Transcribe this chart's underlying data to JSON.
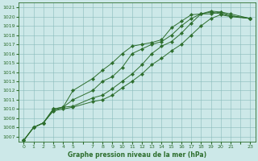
{
  "xlabel": "Graphe pression niveau de la mer (hPa)",
  "bg_color": "#cce8e8",
  "line_color": "#2d6e2d",
  "grid_color": "#88bbbb",
  "xlim": [
    -0.5,
    23.5
  ],
  "ylim": [
    1006.5,
    1021.5
  ],
  "yticks": [
    1007,
    1008,
    1009,
    1010,
    1011,
    1012,
    1013,
    1014,
    1015,
    1016,
    1017,
    1018,
    1019,
    1020,
    1021
  ],
  "xtick_labels": [
    "0",
    "1",
    "2",
    "3",
    "4",
    "5",
    "",
    "7",
    "8",
    "9",
    "10",
    "11",
    "12",
    "13",
    "14",
    "15",
    "16",
    "17",
    "18",
    "19",
    "20",
    "21",
    "",
    "23"
  ],
  "xtick_positions": [
    0,
    1,
    2,
    3,
    4,
    5,
    6,
    7,
    8,
    9,
    10,
    11,
    12,
    13,
    14,
    15,
    16,
    17,
    18,
    19,
    20,
    21,
    22,
    23
  ],
  "series": [
    {
      "x": [
        0,
        1,
        2,
        3,
        4,
        5,
        7,
        8,
        9,
        10,
        11,
        12,
        13,
        14,
        15,
        16,
        17,
        18,
        19,
        20,
        21,
        23
      ],
      "y": [
        1006.6,
        1008.0,
        1008.5,
        1010.0,
        1010.2,
        1012.0,
        1013.3,
        1014.2,
        1015.0,
        1016.0,
        1016.8,
        1017.0,
        1017.2,
        1017.5,
        1018.8,
        1019.5,
        1020.2,
        1020.3,
        1020.5,
        1020.3,
        1020.1,
        1019.8
      ]
    },
    {
      "x": [
        0,
        1,
        2,
        3,
        4,
        5,
        7,
        8,
        9,
        10,
        11,
        12,
        13,
        14,
        15,
        16,
        17,
        18,
        19,
        20,
        21,
        23
      ],
      "y": [
        1006.6,
        1008.0,
        1008.5,
        1010.0,
        1010.2,
        1011.0,
        1012.0,
        1013.0,
        1013.5,
        1014.5,
        1016.0,
        1016.5,
        1017.0,
        1017.3,
        1018.0,
        1019.0,
        1019.8,
        1020.3,
        1020.6,
        1020.5,
        1020.3,
        1019.8
      ]
    },
    {
      "x": [
        0,
        1,
        2,
        3,
        4,
        5,
        7,
        8,
        9,
        10,
        11,
        12,
        13,
        14,
        15,
        16,
        17,
        18,
        19,
        20,
        21,
        23
      ],
      "y": [
        1006.6,
        1008.0,
        1008.5,
        1009.8,
        1010.2,
        1010.3,
        1011.2,
        1011.5,
        1012.2,
        1013.0,
        1013.8,
        1014.8,
        1016.0,
        1016.8,
        1017.3,
        1018.2,
        1019.3,
        1020.3,
        1020.3,
        1020.5,
        1020.1,
        1019.8
      ]
    },
    {
      "x": [
        0,
        1,
        2,
        3,
        4,
        5,
        7,
        8,
        9,
        10,
        11,
        12,
        13,
        14,
        15,
        16,
        17,
        18,
        19,
        20,
        21,
        23
      ],
      "y": [
        1006.6,
        1008.0,
        1008.5,
        1009.8,
        1010.0,
        1010.2,
        1010.8,
        1011.0,
        1011.5,
        1012.3,
        1013.0,
        1013.8,
        1014.8,
        1015.5,
        1016.3,
        1017.0,
        1018.0,
        1019.0,
        1019.8,
        1020.2,
        1020.0,
        1019.8
      ]
    }
  ]
}
